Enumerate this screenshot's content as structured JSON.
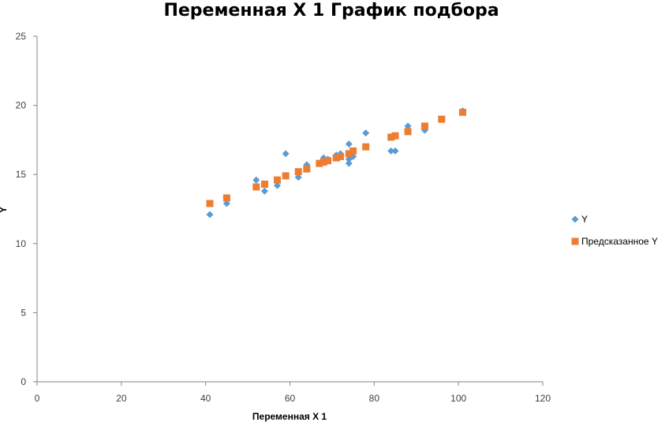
{
  "chart_data": {
    "type": "scatter",
    "title": "Переменная X 1 График подбора",
    "xlabel": "Переменная X 1",
    "ylabel": "Y",
    "xlim": [
      0,
      120
    ],
    "ylim": [
      0,
      25
    ],
    "x_ticks": [
      0,
      20,
      40,
      60,
      80,
      100,
      120
    ],
    "y_ticks": [
      0,
      5,
      10,
      15,
      20,
      25
    ],
    "grid": false,
    "legend_position": "right",
    "series": [
      {
        "name": "Y",
        "marker": "diamond",
        "color": "#5b9bd5",
        "points": [
          [
            41,
            12.1
          ],
          [
            45,
            12.9
          ],
          [
            52,
            14.6
          ],
          [
            54,
            13.8
          ],
          [
            57,
            14.2
          ],
          [
            59,
            16.5
          ],
          [
            62,
            14.8
          ],
          [
            64,
            15.7
          ],
          [
            67,
            15.8
          ],
          [
            68,
            16.2
          ],
          [
            69,
            16.1
          ],
          [
            71,
            16.4
          ],
          [
            72,
            16.5
          ],
          [
            74,
            15.8
          ],
          [
            74,
            16.1
          ],
          [
            74,
            17.2
          ],
          [
            75,
            16.3
          ],
          [
            78,
            18.0
          ],
          [
            84,
            16.7
          ],
          [
            85,
            16.7
          ],
          [
            88,
            18.5
          ],
          [
            92,
            18.2
          ],
          [
            96,
            19.0
          ],
          [
            101,
            19.6
          ]
        ]
      },
      {
        "name": "Предсказанное Y",
        "marker": "square",
        "color": "#ed7d31",
        "points": [
          [
            41,
            12.9
          ],
          [
            45,
            13.3
          ],
          [
            52,
            14.1
          ],
          [
            54,
            14.3
          ],
          [
            57,
            14.6
          ],
          [
            59,
            14.9
          ],
          [
            62,
            15.2
          ],
          [
            64,
            15.4
          ],
          [
            67,
            15.8
          ],
          [
            68,
            15.9
          ],
          [
            69,
            16.0
          ],
          [
            71,
            16.2
          ],
          [
            72,
            16.3
          ],
          [
            74,
            16.5
          ],
          [
            75,
            16.7
          ],
          [
            78,
            17.0
          ],
          [
            84,
            17.7
          ],
          [
            85,
            17.8
          ],
          [
            88,
            18.1
          ],
          [
            92,
            18.5
          ],
          [
            96,
            19.0
          ],
          [
            101,
            19.5
          ]
        ]
      }
    ]
  }
}
